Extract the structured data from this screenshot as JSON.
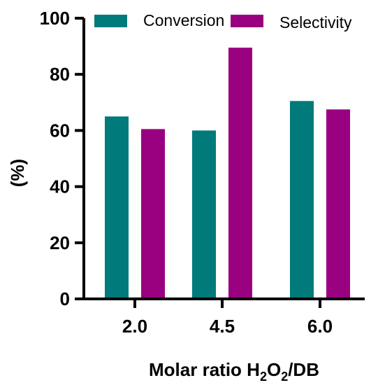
{
  "chart_data": {
    "type": "bar",
    "categories": [
      "2.0",
      "4.5",
      "6.0"
    ],
    "series": [
      {
        "name": "Conversion",
        "values": [
          65,
          60,
          70.5
        ],
        "color": "#007a7a"
      },
      {
        "name": "Selectivity",
        "values": [
          60.5,
          89.5,
          67.5
        ],
        "color": "#990080"
      }
    ],
    "ylabel": "(%)",
    "xlabel": "Molar ratio H2O2/DB",
    "xlabel_parts": {
      "main": "Molar ratio H",
      "sub1": "2",
      "mid": "O",
      "sub2": "2",
      "tail": "/DB"
    },
    "ylim": [
      0,
      100
    ],
    "yticks": [
      "0",
      "20",
      "40",
      "60",
      "80",
      "100"
    ],
    "grid": false,
    "legend_position": "top"
  }
}
